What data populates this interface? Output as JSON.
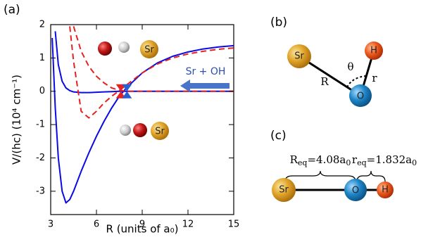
{
  "chart_data": {
    "type": "line",
    "panel_label": "(a)",
    "x_label": "R  (units of a₀)",
    "y_label": "V/(hc) (10⁴ cm⁻¹)",
    "x": [
      3.1,
      3.3,
      3.5,
      3.75,
      4,
      4.25,
      4.5,
      5,
      5.5,
      6,
      6.5,
      7,
      7.5,
      8,
      9,
      10,
      11,
      12,
      13,
      14,
      15
    ],
    "series": [
      {
        "color": "#0a0ae6",
        "dash": false,
        "values": [
          1.6,
          -0.5,
          -2.0,
          -3.0,
          -3.35,
          -3.25,
          -3.0,
          -2.4,
          -1.85,
          -1.35,
          -0.9,
          -0.5,
          -0.15,
          0.12,
          0.55,
          0.85,
          1.05,
          1.18,
          1.27,
          1.33,
          1.37
        ]
      },
      {
        "color": "#0a0ae6",
        "dash": false,
        "values": [
          null,
          1.8,
          0.8,
          0.3,
          0.1,
          0.02,
          -0.02,
          -0.04,
          -0.04,
          -0.03,
          -0.02,
          -0.01,
          0,
          0,
          0,
          0,
          0,
          0,
          0,
          0,
          0
        ]
      },
      {
        "color": "#e52222",
        "dash": true,
        "values": [
          null,
          null,
          null,
          null,
          null,
          1.95,
          0.9,
          -0.6,
          -0.8,
          -0.6,
          -0.35,
          -0.15,
          0.02,
          0.2,
          0.55,
          0.82,
          1.0,
          1.12,
          1.2,
          1.26,
          1.3
        ]
      },
      {
        "color": "#e52222",
        "dash": true,
        "values": [
          null,
          null,
          null,
          null,
          null,
          null,
          1.95,
          1.2,
          0.75,
          0.45,
          0.25,
          0.1,
          0.03,
          0,
          0,
          0,
          0,
          0,
          0,
          0,
          0
        ]
      }
    ],
    "markers": [
      {
        "x": 7.6,
        "y": 0,
        "color": "#e52222"
      },
      {
        "x": 8.0,
        "y": 0,
        "color": "#2a5fd0"
      }
    ],
    "xlim": [
      3,
      15
    ],
    "xticks": [
      3,
      6,
      9,
      12,
      15
    ],
    "ylim": [
      -3.7,
      2
    ],
    "yticks": [
      -3,
      -2,
      -1,
      0,
      1,
      2
    ],
    "arrow_label": "Sr + OH",
    "atom_labels": [
      "Sr",
      "Sr"
    ]
  },
  "diagram_b": {
    "label": "(b)",
    "atoms": [
      "Sr",
      "H",
      "O"
    ],
    "theta": "θ",
    "R": "R",
    "r": "r"
  },
  "diagram_c": {
    "label": "(c)",
    "atoms": [
      "Sr",
      "O",
      "H"
    ],
    "Req": [
      "R",
      "eq",
      "=4.08a",
      "0"
    ],
    "req": [
      "r",
      "eq",
      "=1.832a",
      "0"
    ]
  }
}
